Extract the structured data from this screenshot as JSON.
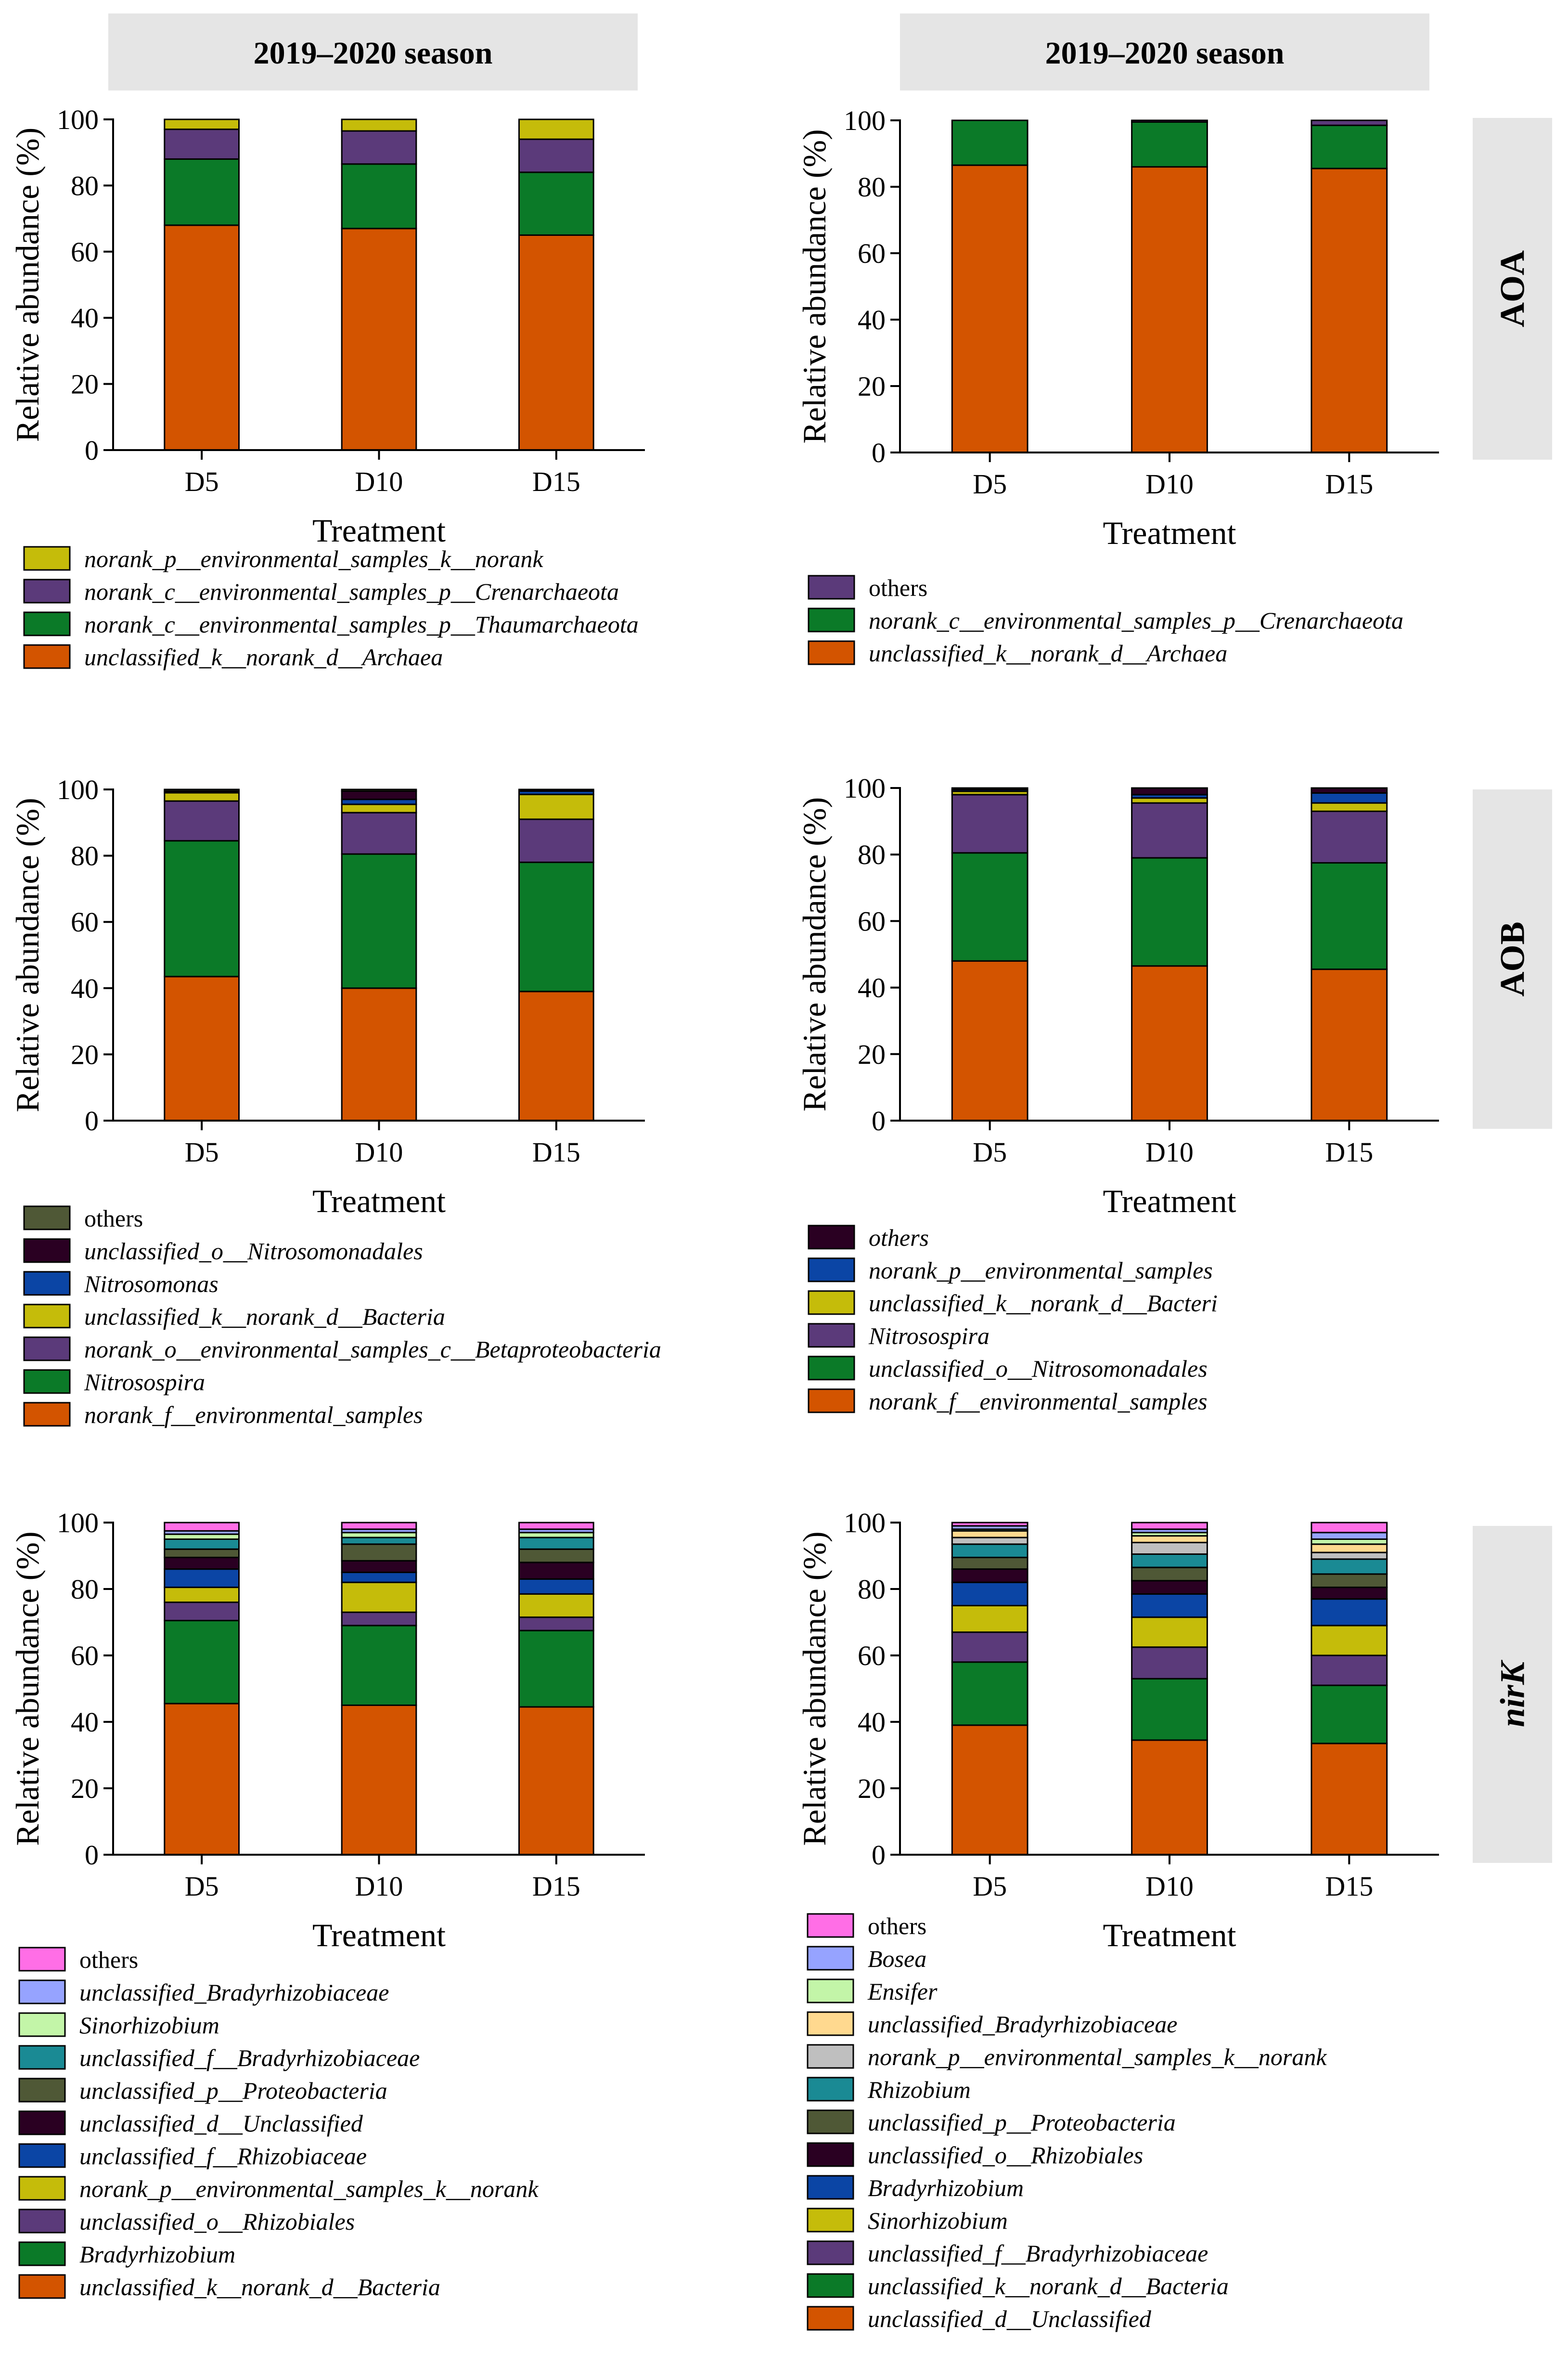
{
  "colors": {
    "orange": "#d35400",
    "green": "#0b7a28",
    "purple": "#5b3a7a",
    "yellow": "#c5bc0a",
    "blue": "#0b45a5",
    "maroon": "#2a0022",
    "olive": "#4f5836",
    "teal": "#1a8a94",
    "lightgreen": "#c3f5a8",
    "lightblue": "#96a3ff",
    "pink": "#ff6ee6",
    "lightpeach": "#ffd98f",
    "gray": "#bfbfbf",
    "header_bg": "#e5e5e5"
  },
  "headers": [
    "2019–2020 season",
    "2019–2020 season"
  ],
  "row_labels": [
    "AOA",
    "AOB",
    "nirK"
  ],
  "chart_data": [
    {
      "type": "bar",
      "stacked": true,
      "id": "aoa-left",
      "categories": [
        "D5",
        "D10",
        "D15"
      ],
      "xlabel": "Treatment",
      "ylabel": "Relative abundance (%)",
      "ylim": [
        0,
        100
      ],
      "yticks": [
        "0",
        "20",
        "40",
        "60",
        "80",
        "100"
      ],
      "series": [
        {
          "name": "unclassified_k__norank_d__Archaea",
          "color": "orange",
          "italic": true,
          "values": [
            68,
            67,
            65
          ]
        },
        {
          "name": "norank_c__environmental_samples_p__Thaumarchaeota",
          "color": "green",
          "italic": true,
          "values": [
            20,
            19.5,
            19
          ]
        },
        {
          "name": "norank_c__environmental_samples_p__Crenarchaeota",
          "color": "purple",
          "italic": true,
          "values": [
            9,
            10,
            10
          ]
        },
        {
          "name": "norank_p__environmental_samples_k__norank",
          "color": "yellow",
          "italic": true,
          "values": [
            3,
            3.5,
            6
          ]
        }
      ]
    },
    {
      "type": "bar",
      "stacked": true,
      "id": "aoa-right",
      "categories": [
        "D5",
        "D10",
        "D15"
      ],
      "xlabel": "Treatment",
      "ylabel": "Relative abundance (%)",
      "ylim": [
        0,
        100
      ],
      "yticks": [
        "0",
        "20",
        "40",
        "60",
        "80",
        "100"
      ],
      "series": [
        {
          "name": "unclassified_k__norank_d__Archaea",
          "color": "orange",
          "italic": true,
          "values": [
            86.5,
            86,
            85.5
          ]
        },
        {
          "name": "norank_c__environmental_samples_p__Crenarchaeota",
          "color": "green",
          "italic": true,
          "values": [
            13.5,
            13.5,
            13
          ]
        },
        {
          "name": "others",
          "color": "purple",
          "italic": false,
          "values": [
            0,
            0.5,
            1.5
          ]
        }
      ]
    },
    {
      "type": "bar",
      "stacked": true,
      "id": "aob-left",
      "categories": [
        "D5",
        "D10",
        "D15"
      ],
      "xlabel": "Treatment",
      "ylabel": "Relative abundance (%)",
      "ylim": [
        0,
        100
      ],
      "yticks": [
        "0",
        "20",
        "40",
        "60",
        "80",
        "100"
      ],
      "series": [
        {
          "name": "norank_f__environmental_samples",
          "color": "orange",
          "italic": true,
          "values": [
            43.5,
            40,
            39
          ]
        },
        {
          "name": "Nitrosospira",
          "color": "green",
          "italic": true,
          "values": [
            41,
            40.5,
            39
          ]
        },
        {
          "name": "norank_o__environmental_samples_c__Betaproteobacteria",
          "color": "purple",
          "italic": true,
          "values": [
            12,
            12.5,
            13
          ]
        },
        {
          "name": "unclassified_k__norank_d__Bacteria",
          "color": "yellow",
          "italic": true,
          "values": [
            2.5,
            2.5,
            7.5
          ]
        },
        {
          "name": "Nitrosomonas",
          "color": "blue",
          "italic": true,
          "values": [
            0,
            1.5,
            1
          ]
        },
        {
          "name": "unclassified_o__Nitrosomonadales",
          "color": "maroon",
          "italic": true,
          "values": [
            0.5,
            2.5,
            0.5
          ]
        },
        {
          "name": "others",
          "color": "olive",
          "italic": false,
          "values": [
            0.5,
            0.5,
            0
          ]
        }
      ]
    },
    {
      "type": "bar",
      "stacked": true,
      "id": "aob-right",
      "categories": [
        "D5",
        "D10",
        "D15"
      ],
      "xlabel": "Treatment",
      "ylabel": "Relative abundance (%)",
      "ylim": [
        0,
        100
      ],
      "yticks": [
        "0",
        "20",
        "40",
        "60",
        "80",
        "100"
      ],
      "series": [
        {
          "name": "norank_f__environmental_samples",
          "color": "orange",
          "italic": true,
          "values": [
            48,
            46.5,
            45.5
          ]
        },
        {
          "name": "unclassified_o__Nitrosomonadales",
          "color": "green",
          "italic": true,
          "values": [
            32.5,
            32.5,
            32
          ]
        },
        {
          "name": "Nitrosospira",
          "color": "purple",
          "italic": true,
          "values": [
            17.5,
            16.5,
            15.5
          ]
        },
        {
          "name": "unclassified_k__norank_d__Bacteri",
          "color": "yellow",
          "italic": true,
          "values": [
            1,
            1.5,
            2.5
          ]
        },
        {
          "name": "norank_p__environmental_samples",
          "color": "blue",
          "italic": true,
          "values": [
            0.5,
            1,
            3
          ]
        },
        {
          "name": "others",
          "color": "maroon",
          "italic": true,
          "values": [
            0.5,
            2,
            1.5
          ]
        }
      ]
    },
    {
      "type": "bar",
      "stacked": true,
      "id": "nirk-left",
      "categories": [
        "D5",
        "D10",
        "D15"
      ],
      "xlabel": "Treatment",
      "ylabel": "Relative abundance (%)",
      "ylim": [
        0,
        100
      ],
      "yticks": [
        "0",
        "20",
        "40",
        "60",
        "80",
        "100"
      ],
      "series": [
        {
          "name": "unclassified_k__norank_d__Bacteria",
          "color": "orange",
          "italic": true,
          "values": [
            45.5,
            45,
            44.5
          ]
        },
        {
          "name": "Bradyrhizobium",
          "color": "green",
          "italic": true,
          "values": [
            25,
            24,
            23
          ]
        },
        {
          "name": "unclassified_o__Rhizobiales",
          "color": "purple",
          "italic": true,
          "values": [
            5.5,
            4,
            4
          ]
        },
        {
          "name": "norank_p__environmental_samples_k__norank",
          "color": "yellow",
          "italic": true,
          "values": [
            4.5,
            9,
            7
          ]
        },
        {
          "name": "unclassified_f__Rhizobiaceae",
          "color": "blue",
          "italic": true,
          "values": [
            5.5,
            3,
            4.5
          ]
        },
        {
          "name": "unclassified_d__Unclassified",
          "color": "maroon",
          "italic": true,
          "values": [
            3.5,
            3.5,
            5
          ]
        },
        {
          "name": "unclassified_p__Proteobacteria",
          "color": "olive",
          "italic": true,
          "values": [
            2.5,
            5,
            4
          ]
        },
        {
          "name": "unclassified_f__Bradyrhizobiaceae",
          "color": "teal",
          "italic": true,
          "values": [
            3,
            2,
            3.5
          ]
        },
        {
          "name": "Sinorhizobium",
          "color": "lightgreen",
          "italic": true,
          "values": [
            1.5,
            1.5,
            1.5
          ]
        },
        {
          "name": "unclassified_Bradyrhizobiaceae",
          "color": "lightblue",
          "italic": true,
          "values": [
            1,
            1,
            1
          ]
        },
        {
          "name": "others",
          "color": "pink",
          "italic": false,
          "values": [
            2.5,
            2,
            2
          ]
        }
      ]
    },
    {
      "type": "bar",
      "stacked": true,
      "id": "nirk-right",
      "categories": [
        "D5",
        "D10",
        "D15"
      ],
      "xlabel": "Treatment",
      "ylabel": "Relative abundance (%)",
      "ylim": [
        0,
        100
      ],
      "yticks": [
        "0",
        "20",
        "40",
        "60",
        "80",
        "100"
      ],
      "series": [
        {
          "name": "unclassified_d__Unclassified",
          "color": "orange",
          "italic": true,
          "values": [
            39,
            34.5,
            33.5
          ]
        },
        {
          "name": "unclassified_k__norank_d__Bacteria",
          "color": "green",
          "italic": true,
          "values": [
            19,
            18.5,
            17.5
          ]
        },
        {
          "name": "unclassified_f__Bradyrhizobiaceae",
          "color": "purple",
          "italic": true,
          "values": [
            9,
            9.5,
            9
          ]
        },
        {
          "name": "Sinorhizobium",
          "color": "yellow",
          "italic": true,
          "values": [
            8,
            9,
            9
          ]
        },
        {
          "name": "Bradyrhizobium",
          "color": "blue",
          "italic": true,
          "values": [
            7,
            7,
            8
          ]
        },
        {
          "name": "unclassified_o__Rhizobiales",
          "color": "maroon",
          "italic": true,
          "values": [
            4,
            4,
            3.5
          ]
        },
        {
          "name": "unclassified_p__Proteobacteria",
          "color": "olive",
          "italic": true,
          "values": [
            3.5,
            4,
            4
          ]
        },
        {
          "name": "Rhizobium",
          "color": "teal",
          "italic": true,
          "values": [
            4,
            4,
            4.5
          ]
        },
        {
          "name": "norank_p__environmental_samples_k__norank",
          "color": "gray",
          "italic": true,
          "values": [
            2,
            3.5,
            2
          ]
        },
        {
          "name": "unclassified_Bradyrhizobiaceae",
          "color": "lightpeach",
          "italic": true,
          "values": [
            2,
            2,
            2.5
          ]
        },
        {
          "name": "Ensifer",
          "color": "lightgreen",
          "italic": true,
          "values": [
            0.5,
            1,
            1.5
          ]
        },
        {
          "name": "Bosea",
          "color": "lightblue",
          "italic": true,
          "values": [
            1,
            1,
            2
          ]
        },
        {
          "name": "others",
          "color": "pink",
          "italic": false,
          "values": [
            1,
            2,
            3
          ]
        }
      ]
    }
  ]
}
